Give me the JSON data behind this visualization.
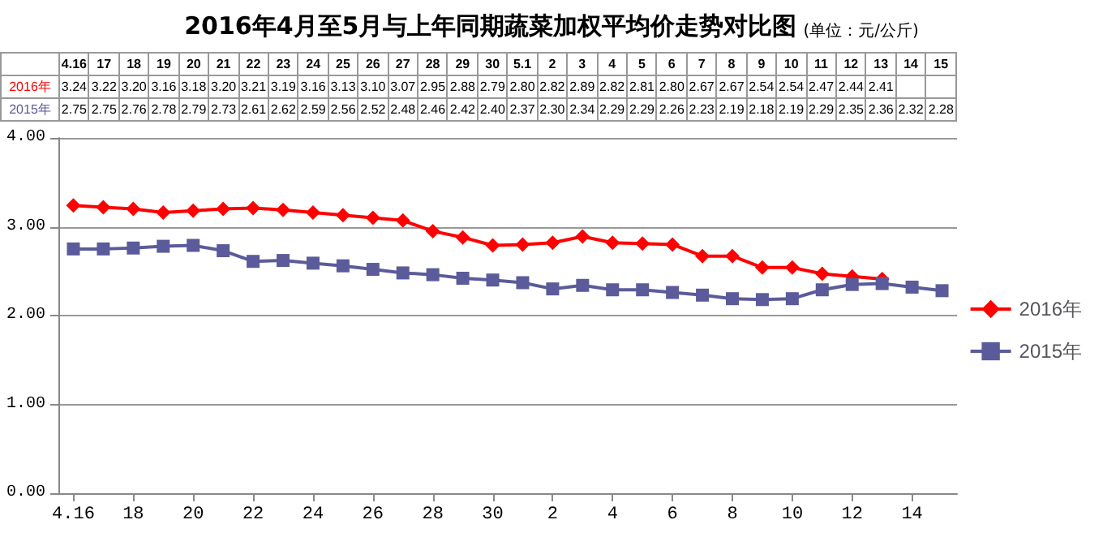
{
  "chart_data": {
    "type": "line",
    "title": "2016年4月至5月与上年同期蔬菜加权平均价走势对比图",
    "subtitle": "(单位：元/公斤)",
    "categories": [
      "4.16",
      "17",
      "18",
      "19",
      "20",
      "21",
      "22",
      "23",
      "24",
      "25",
      "26",
      "27",
      "28",
      "29",
      "30",
      "5.1",
      "2",
      "3",
      "4",
      "5",
      "6",
      "7",
      "8",
      "9",
      "10",
      "11",
      "12",
      "13",
      "14",
      "15"
    ],
    "series": [
      {
        "name": "2016年",
        "color": "#ff0000",
        "marker": "diamond",
        "values": [
          3.24,
          3.22,
          3.2,
          3.16,
          3.18,
          3.2,
          3.21,
          3.19,
          3.16,
          3.13,
          3.1,
          3.07,
          2.95,
          2.88,
          2.79,
          2.8,
          2.82,
          2.89,
          2.82,
          2.81,
          2.8,
          2.67,
          2.67,
          2.54,
          2.54,
          2.47,
          2.44,
          2.41,
          null,
          null
        ],
        "value_labels": [
          "3.24",
          "3.22",
          "3.20",
          "3.16",
          "3.18",
          "3.20",
          "3.21",
          "3.19",
          "3.16",
          "3.13",
          "3.10",
          "3.07",
          "2.95",
          "2.88",
          "2.79",
          "2.80",
          "2.82",
          "2.89",
          "2.82",
          "2.81",
          "2.80",
          "2.67",
          "2.67",
          "2.54",
          "2.54",
          "2.47",
          "2.44",
          "2.41",
          null,
          null
        ]
      },
      {
        "name": "2015年",
        "color": "#5b5b9b",
        "marker": "square",
        "values": [
          2.75,
          2.75,
          2.76,
          2.78,
          2.79,
          2.73,
          2.61,
          2.62,
          2.59,
          2.56,
          2.52,
          2.48,
          2.46,
          2.42,
          2.4,
          2.37,
          2.3,
          2.34,
          2.29,
          2.29,
          2.26,
          2.23,
          2.19,
          2.18,
          2.19,
          2.29,
          2.35,
          2.36,
          2.32,
          2.28
        ],
        "value_labels": [
          "2.75",
          "2.75",
          "2.76",
          "2.78",
          "2.79",
          "2.73",
          "2.61",
          "2.62",
          "2.59",
          "2.56",
          "2.52",
          "2.48",
          "2.46",
          "2.42",
          "2.40",
          "2.37",
          "2.30",
          "2.34",
          "2.29",
          "2.29",
          "2.26",
          "2.23",
          "2.19",
          "2.18",
          "2.19",
          "2.29",
          "2.35",
          "2.36",
          "2.32",
          "2.28"
        ]
      }
    ],
    "ylim": [
      0,
      4
    ],
    "yticks": [
      {
        "value": 0,
        "label": "0.00"
      },
      {
        "value": 1,
        "label": "1.00"
      },
      {
        "value": 2,
        "label": "2.00"
      },
      {
        "value": 3,
        "label": "3.00"
      },
      {
        "value": 4,
        "label": "4.00"
      }
    ],
    "grid": "y",
    "legend": "right"
  }
}
